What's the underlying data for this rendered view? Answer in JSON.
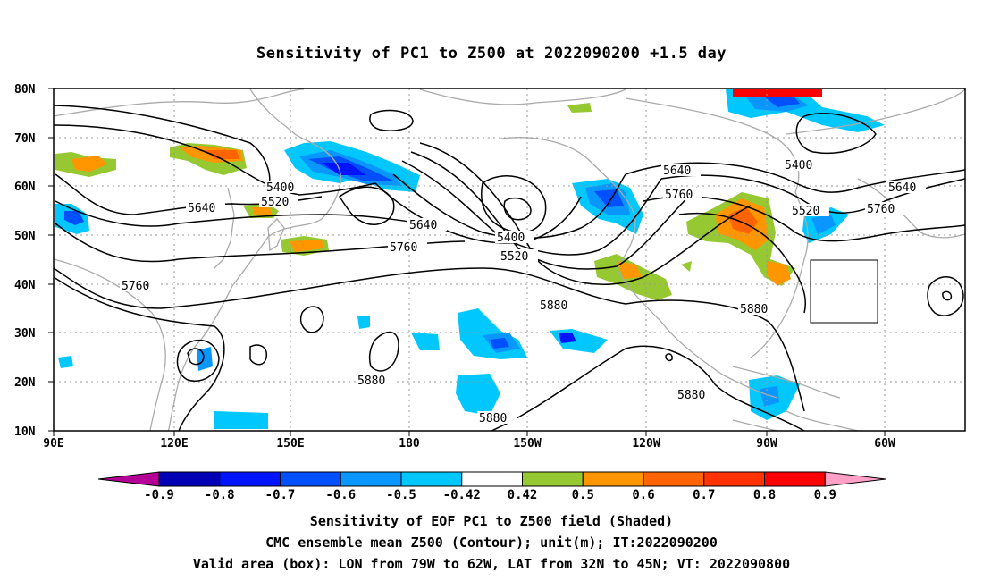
{
  "title": "Sensitivity of PC1 to Z500 at 2022090200 +1.5 day",
  "lat_labels": [
    "80N",
    "70N",
    "60N",
    "50N",
    "40N",
    "30N",
    "20N",
    "10N"
  ],
  "lon_labels": [
    "90E",
    "120E",
    "150E",
    "180",
    "150W",
    "120W",
    "90W",
    "60W"
  ],
  "contour_labels": [
    {
      "text": "5400",
      "id": "c1"
    },
    {
      "text": "5520",
      "id": "c2"
    },
    {
      "text": "5640",
      "id": "c3"
    },
    {
      "text": "5640",
      "id": "c4"
    },
    {
      "text": "5760",
      "id": "c5"
    },
    {
      "text": "5760",
      "id": "c6"
    },
    {
      "text": "5400",
      "id": "c7"
    },
    {
      "text": "5520",
      "id": "c8"
    },
    {
      "text": "5880",
      "id": "c9"
    },
    {
      "text": "5640",
      "id": "c10"
    },
    {
      "text": "5760",
      "id": "c11"
    },
    {
      "text": "5400",
      "id": "c12"
    },
    {
      "text": "5520",
      "id": "c13"
    },
    {
      "text": "5760",
      "id": "c14"
    },
    {
      "text": "5640",
      "id": "c15"
    },
    {
      "text": "5880",
      "id": "c16"
    },
    {
      "text": "5880",
      "id": "c17"
    },
    {
      "text": "5880",
      "id": "c18"
    },
    {
      "text": "5880",
      "id": "c19"
    }
  ],
  "colorbar": {
    "labels": [
      "-0.9",
      "-0.8",
      "-0.7",
      "-0.6",
      "-0.5",
      "-0.42",
      "0.42",
      "0.5",
      "0.6",
      "0.7",
      "0.8",
      "0.9"
    ],
    "colors": [
      "#b40096",
      "#0000b4",
      "#0014ff",
      "#0050ff",
      "#0a96ff",
      "#00c8ff",
      "#ffffff",
      "#96c832",
      "#ff9600",
      "#ff6400",
      "#ff3200",
      "#ff0000",
      "#ffa0c8"
    ]
  },
  "captions": [
    "Sensitivity of EOF PC1 to Z500 field (Shaded)",
    "CMC ensemble mean Z500 (Contour); unit(m); IT:2022090200",
    "Valid area (box): LON from 79W to 62W, LAT from 32N to 45N; VT: 2022090800"
  ],
  "colors": {
    "coast": "#aaaaaa",
    "grid": "#999999",
    "contour": "#000000",
    "box": "#000000"
  }
}
